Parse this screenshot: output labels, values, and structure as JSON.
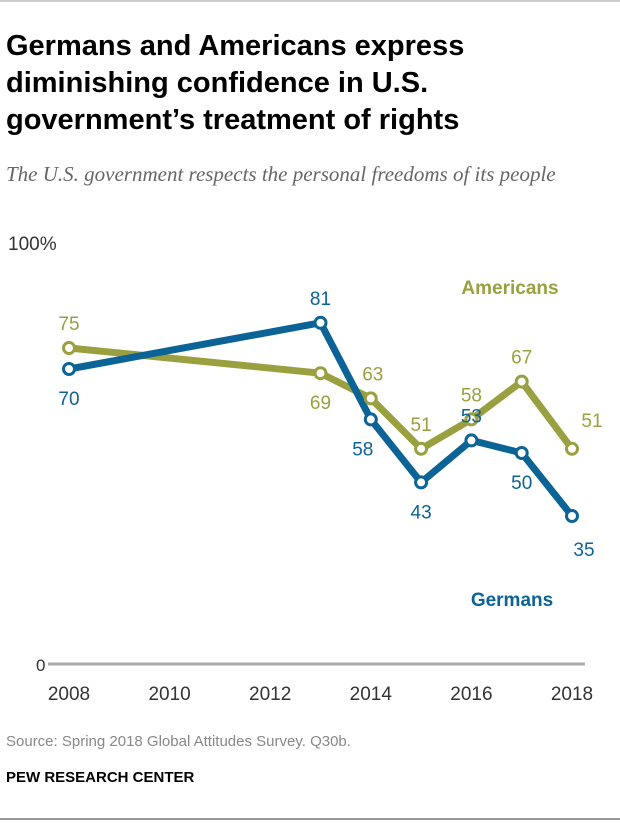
{
  "title": "Germans and Americans express diminishing confidence in U.S. government’s treatment of rights",
  "subtitle": "The U.S. government respects the personal freedoms of its people",
  "source": "Source: Spring 2018 Global Attitudes Survey. Q30b.",
  "brand": "PEW RESEARCH CENTER",
  "chart_data": {
    "type": "line",
    "x": [
      2008,
      2013,
      2014,
      2015,
      2016,
      2017,
      2018
    ],
    "xticks": [
      "2008",
      "2010",
      "2012",
      "2014",
      "2016",
      "2018"
    ],
    "yticks": [
      "0",
      "100%"
    ],
    "ylim": [
      0,
      100
    ],
    "xlim": [
      2008,
      2018
    ],
    "grid": false,
    "series": [
      {
        "name": "Americans",
        "color": "#9aa040",
        "values": [
          75,
          69,
          63,
          51,
          58,
          67,
          51
        ]
      },
      {
        "name": "Germans",
        "color": "#0b6396",
        "values": [
          70,
          81,
          58,
          43,
          53,
          50,
          35
        ]
      }
    ]
  }
}
